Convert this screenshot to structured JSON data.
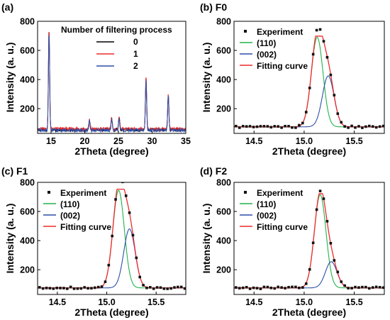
{
  "chart_data": [
    {
      "panel": "(a)",
      "type": "line",
      "xlabel": "2Theta (degree)",
      "ylabel": "Intensity (a. u.)",
      "xlim": [
        13,
        35
      ],
      "ylim": [
        30,
        800
      ],
      "xticks": [
        15,
        20,
        25,
        30,
        35
      ],
      "yticks": [
        200,
        400,
        600,
        800
      ],
      "legend": {
        "title": "Number of filtering process",
        "position": "top-right"
      },
      "series": [
        {
          "name": "0",
          "color": "#000000",
          "baseline": 55,
          "peaks": [
            [
              14.7,
              740
            ],
            [
              20.7,
              120
            ],
            [
              24.0,
              135
            ],
            [
              25.1,
              140
            ],
            [
              29.1,
              400
            ],
            [
              32.4,
              290
            ]
          ]
        },
        {
          "name": "1",
          "color": "#ee2b2b",
          "baseline": 60,
          "peaks": [
            [
              14.7,
              755
            ],
            [
              20.7,
              125
            ],
            [
              24.0,
              140
            ],
            [
              25.1,
              145
            ],
            [
              29.1,
              430
            ],
            [
              32.4,
              310
            ]
          ]
        },
        {
          "name": "2",
          "color": "#2d4fa8",
          "baseline": 52,
          "peaks": [
            [
              14.7,
              730
            ],
            [
              20.7,
              118
            ],
            [
              24.0,
              130
            ],
            [
              25.1,
              135
            ],
            [
              29.1,
              410
            ],
            [
              32.4,
              295
            ]
          ]
        }
      ]
    },
    {
      "panel": "(b) F0",
      "type": "line",
      "xlabel": "2Theta (degree)",
      "ylabel": "Intensity (a. u.)",
      "xlim": [
        14.3,
        15.8
      ],
      "ylim": [
        30,
        800
      ],
      "xticks": [
        14.5,
        15.0,
        15.5
      ],
      "yticks": [
        200,
        400,
        600,
        800
      ],
      "legend": {
        "position": "top-left"
      },
      "baseline": 75,
      "series": [
        {
          "name": "Experiment",
          "color": "#000000",
          "marker": "square"
        },
        {
          "name": "(110)",
          "color": "#22b24c",
          "center": 15.13,
          "height": 690
        },
        {
          "name": "(002)",
          "color": "#2d4fa8",
          "center": 15.24,
          "height": 425
        },
        {
          "name": "Fitting curve",
          "color": "#ee2b2b"
        }
      ]
    },
    {
      "panel": "(c) F1",
      "type": "line",
      "xlabel": "2Theta (degree)",
      "ylabel": "Intensity (a. u.)",
      "xlim": [
        14.3,
        15.8
      ],
      "ylim": [
        30,
        800
      ],
      "xticks": [
        14.5,
        15.0,
        15.5
      ],
      "yticks": [
        200,
        400,
        600,
        800
      ],
      "legend": {
        "position": "top-left"
      },
      "baseline": 75,
      "series": [
        {
          "name": "Experiment",
          "color": "#000000",
          "marker": "square"
        },
        {
          "name": "(110)",
          "color": "#22b24c",
          "center": 15.12,
          "height": 745
        },
        {
          "name": "(002)",
          "color": "#2d4fa8",
          "center": 15.23,
          "height": 480
        },
        {
          "name": "Fitting curve",
          "color": "#ee2b2b"
        }
      ]
    },
    {
      "panel": "(d) F2",
      "type": "line",
      "xlabel": "2Theta (degree)",
      "ylabel": "Intensity (a. u.)",
      "xlim": [
        14.3,
        15.8
      ],
      "ylim": [
        30,
        800
      ],
      "xticks": [
        14.5,
        15.0,
        15.5
      ],
      "yticks": [
        200,
        400,
        600,
        800
      ],
      "legend": {
        "position": "top-left"
      },
      "baseline": 75,
      "series": [
        {
          "name": "Experiment",
          "color": "#000000",
          "marker": "square"
        },
        {
          "name": "(110)",
          "color": "#22b24c",
          "center": 15.16,
          "height": 715
        },
        {
          "name": "(002)",
          "color": "#2d4fa8",
          "center": 15.27,
          "height": 255
        },
        {
          "name": "Fitting curve",
          "color": "#ee2b2b"
        }
      ]
    }
  ]
}
